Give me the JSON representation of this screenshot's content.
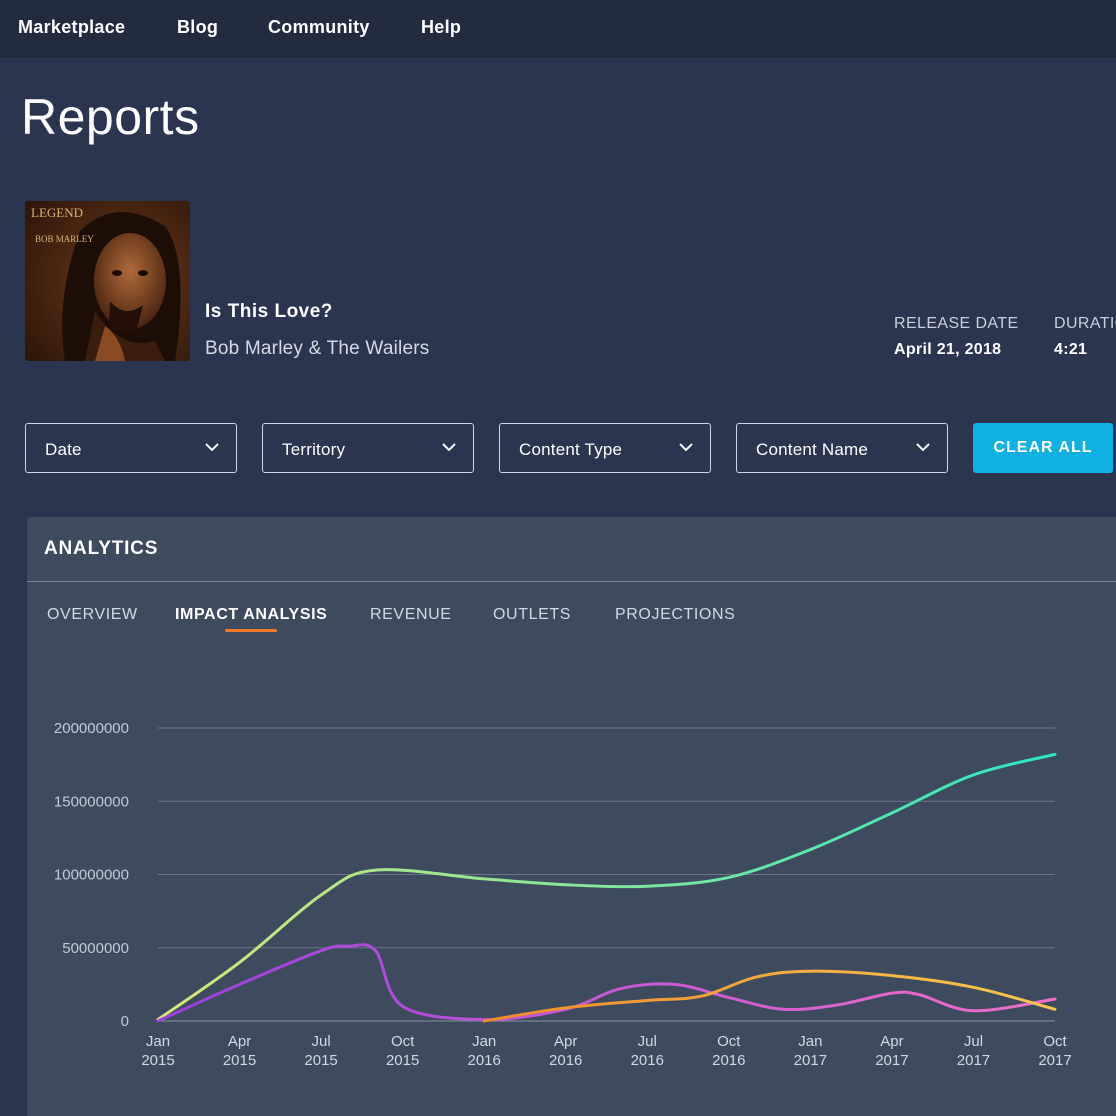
{
  "nav": {
    "items": [
      "Marketplace",
      "Blog",
      "Community",
      "Help"
    ]
  },
  "page": {
    "title": "Reports"
  },
  "album": {
    "cover_text_line1": "LEGEND",
    "cover_text_line2": "BOB MARLEY"
  },
  "track": {
    "title": "Is This Love?",
    "artist": "Bob Marley & The Wailers",
    "release_label": "RELEASE DATE",
    "release_value": "April 21, 2018",
    "duration_label": "DURATION",
    "duration_value": "4:21"
  },
  "filters": {
    "items": [
      "Date",
      "Territory",
      "Content Type",
      "Content Name"
    ],
    "clear_label": "CLEAR ALL"
  },
  "analytics": {
    "title": "ANALYTICS",
    "tabs": [
      "OVERVIEW",
      "IMPACT ANALYSIS",
      "REVENUE",
      "OUTLETS",
      "PROJECTIONS"
    ],
    "active_tab": "IMPACT ANALYSIS"
  },
  "colors": {
    "background": "#2b3550",
    "nav": "#232b3e",
    "panel": "#3e4a5e",
    "accent": "#0fb1e3",
    "tab_underline": "#f07a2a",
    "series_green_start": "#d6e67a",
    "series_green_end": "#2ee6c0",
    "series_purple_start": "#9b3fe0",
    "series_purple_end": "#f070c8",
    "series_orange": "#f08a2a",
    "series_orange_end": "#f7c850"
  },
  "chart_data": {
    "type": "line",
    "x_ticks": [
      [
        "Jan",
        "2015"
      ],
      [
        "Apr",
        "2015"
      ],
      [
        "Jul",
        "2015"
      ],
      [
        "Oct",
        "2015"
      ],
      [
        "Jan",
        "2016"
      ],
      [
        "Apr",
        "2016"
      ],
      [
        "Jul",
        "2016"
      ],
      [
        "Oct",
        "2016"
      ],
      [
        "Jan",
        "2017"
      ],
      [
        "Apr",
        "2017"
      ],
      [
        "Jul",
        "2017"
      ],
      [
        "Oct",
        "2017"
      ]
    ],
    "y_ticks": [
      "0",
      "50000000",
      "100000000",
      "150000000",
      "200000000"
    ],
    "ylim": [
      0,
      200000000
    ],
    "grid": true,
    "legend": "none",
    "series": [
      {
        "color_key": "green",
        "points": [
          [
            "2015-01",
            1000000
          ],
          [
            "2015-04",
            40000000
          ],
          [
            "2015-07",
            86000000
          ],
          [
            "2015-09",
            103000000
          ],
          [
            "2016-01",
            97000000
          ],
          [
            "2016-04",
            93000000
          ],
          [
            "2016-07",
            92000000
          ],
          [
            "2016-10",
            98000000
          ],
          [
            "2017-01",
            117000000
          ],
          [
            "2017-04",
            142000000
          ],
          [
            "2017-07",
            168000000
          ],
          [
            "2017-10",
            182000000
          ]
        ]
      },
      {
        "color_key": "purple",
        "points": [
          [
            "2015-01",
            0
          ],
          [
            "2015-04",
            25000000
          ],
          [
            "2015-07",
            48000000
          ],
          [
            "2015-08",
            51000000
          ],
          [
            "2015-09",
            48000000
          ],
          [
            "2015-10",
            10000000
          ],
          [
            "2016-01",
            1000000
          ],
          [
            "2016-04",
            8000000
          ],
          [
            "2016-06",
            22000000
          ],
          [
            "2016-08",
            25000000
          ],
          [
            "2016-10",
            16000000
          ],
          [
            "2016-12",
            8000000
          ],
          [
            "2017-02",
            11000000
          ],
          [
            "2017-04",
            19000000
          ],
          [
            "2017-05",
            18000000
          ],
          [
            "2017-07",
            7000000
          ],
          [
            "2017-10",
            15000000
          ]
        ]
      },
      {
        "color_key": "orange",
        "points": [
          [
            "2016-01",
            0
          ],
          [
            "2016-04",
            9000000
          ],
          [
            "2016-07",
            14000000
          ],
          [
            "2016-09",
            17000000
          ],
          [
            "2016-11",
            30000000
          ],
          [
            "2017-01",
            34000000
          ],
          [
            "2017-04",
            31000000
          ],
          [
            "2017-07",
            23000000
          ],
          [
            "2017-10",
            8000000
          ]
        ]
      }
    ]
  }
}
